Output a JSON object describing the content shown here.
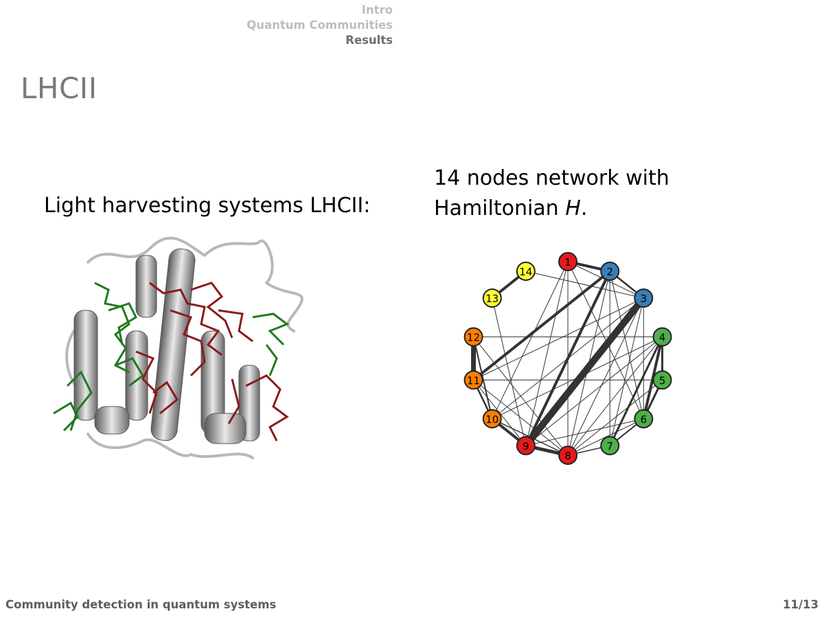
{
  "nav": {
    "items": [
      {
        "label": "Intro",
        "active": false
      },
      {
        "label": "Quantum Communities",
        "active": false
      },
      {
        "label": "Results",
        "active": true
      }
    ]
  },
  "frame": {
    "title": "LHCII"
  },
  "left": {
    "caption": "Light harvesting systems LHCII:"
  },
  "right": {
    "caption_line1": "14 nodes network with",
    "caption_line2_prefix": "Hamiltonian ",
    "caption_line2_symbol": "H",
    "caption_line2_suffix": "."
  },
  "network": {
    "colors": {
      "red": "#e41a1c",
      "blue": "#377eb8",
      "green": "#4daf4a",
      "orange": "#ff7f00",
      "yellow": "#ffff33"
    },
    "nodes": [
      {
        "label": "1",
        "color": "red"
      },
      {
        "label": "2",
        "color": "blue"
      },
      {
        "label": "3",
        "color": "blue"
      },
      {
        "label": "4",
        "color": "green"
      },
      {
        "label": "5",
        "color": "green"
      },
      {
        "label": "6",
        "color": "green"
      },
      {
        "label": "7",
        "color": "green"
      },
      {
        "label": "8",
        "color": "red"
      },
      {
        "label": "9",
        "color": "red"
      },
      {
        "label": "10",
        "color": "orange"
      },
      {
        "label": "11",
        "color": "orange"
      },
      {
        "label": "12",
        "color": "orange"
      },
      {
        "label": "13",
        "color": "yellow"
      },
      {
        "label": "14",
        "color": "yellow"
      }
    ],
    "edges": [
      [
        1,
        2,
        4
      ],
      [
        2,
        3,
        2.5
      ],
      [
        3,
        9,
        10
      ],
      [
        4,
        5,
        3
      ],
      [
        5,
        6,
        3
      ],
      [
        4,
        6,
        4
      ],
      [
        4,
        7,
        3
      ],
      [
        6,
        7,
        2
      ],
      [
        8,
        9,
        5
      ],
      [
        9,
        10,
        4
      ],
      [
        10,
        11,
        2.5
      ],
      [
        11,
        12,
        7
      ],
      [
        12,
        10,
        2
      ],
      [
        13,
        14,
        4
      ],
      [
        11,
        2,
        4
      ],
      [
        9,
        2,
        4
      ],
      [
        12,
        4,
        1
      ],
      [
        1,
        8,
        1
      ],
      [
        1,
        9,
        1
      ],
      [
        1,
        10,
        1
      ],
      [
        1,
        3,
        1
      ],
      [
        1,
        6,
        1
      ],
      [
        2,
        8,
        1
      ],
      [
        2,
        7,
        1
      ],
      [
        2,
        6,
        1
      ],
      [
        3,
        8,
        1
      ],
      [
        3,
        7,
        1
      ],
      [
        3,
        10,
        1
      ],
      [
        3,
        11,
        1
      ],
      [
        3,
        6,
        1
      ],
      [
        4,
        10,
        1
      ],
      [
        4,
        9,
        1
      ],
      [
        4,
        8,
        1
      ],
      [
        5,
        11,
        1
      ],
      [
        5,
        8,
        1
      ],
      [
        6,
        8,
        1
      ],
      [
        7,
        8,
        1.5
      ],
      [
        6,
        9,
        1
      ],
      [
        10,
        8,
        1.5
      ],
      [
        11,
        8,
        1
      ],
      [
        12,
        8,
        1
      ],
      [
        13,
        9,
        1
      ],
      [
        14,
        3,
        1
      ],
      [
        11,
        9,
        1
      ]
    ]
  },
  "footer": {
    "title": "Community detection in quantum systems",
    "page": "11/13"
  }
}
